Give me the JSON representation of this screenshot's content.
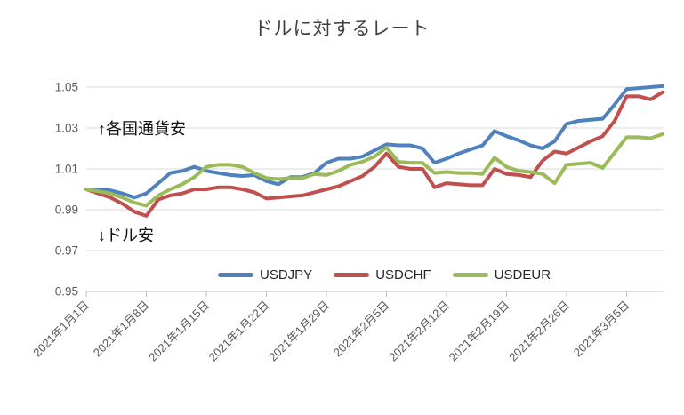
{
  "title": "ドルに対するレート",
  "annotations": {
    "weak_currencies": "↑各国通貨安",
    "weak_dollar": "↓ドル安"
  },
  "colors": {
    "grid": "#D9D9D9",
    "axis": "#BFBFBF",
    "tick_text": "#595959",
    "title_text": "#404040"
  },
  "chart_data": {
    "type": "line",
    "title": "ドルに対するレート",
    "xlabel": "",
    "ylabel": "",
    "ylim": [
      0.95,
      1.06
    ],
    "y_ticks": [
      0.95,
      0.97,
      0.99,
      1.01,
      1.03,
      1.05
    ],
    "grid": true,
    "legend_position": "bottom",
    "x_label_interval": 5,
    "x_tick_labels": [
      "2021年1月1日",
      "2021年1月8日",
      "2021年1月15日",
      "2021年1月22日",
      "2021年1月29日",
      "2021年2月5日",
      "2021年2月12日",
      "2021年2月19日",
      "2021年2月26日",
      "2021年3月5日"
    ],
    "x": [
      "2021年1月1日",
      "2021年1月4日",
      "2021年1月5日",
      "2021年1月6日",
      "2021年1月7日",
      "2021年1月8日",
      "2021年1月11日",
      "2021年1月12日",
      "2021年1月13日",
      "2021年1月14日",
      "2021年1月15日",
      "2021年1月18日",
      "2021年1月19日",
      "2021年1月20日",
      "2021年1月21日",
      "2021年1月22日",
      "2021年1月25日",
      "2021年1月26日",
      "2021年1月27日",
      "2021年1月28日",
      "2021年1月29日",
      "2021年2月1日",
      "2021年2月2日",
      "2021年2月3日",
      "2021年2月4日",
      "2021年2月5日",
      "2021年2月8日",
      "2021年2月9日",
      "2021年2月10日",
      "2021年2月11日",
      "2021年2月12日",
      "2021年2月15日",
      "2021年2月16日",
      "2021年2月17日",
      "2021年2月18日",
      "2021年2月19日",
      "2021年2月22日",
      "2021年2月23日",
      "2021年2月24日",
      "2021年2月25日",
      "2021年2月26日",
      "2021年3月1日",
      "2021年3月2日",
      "2021年3月3日",
      "2021年3月4日",
      "2021年3月5日",
      "2021年3月8日",
      "2021年3月9日",
      "2021年3月10日"
    ],
    "series": [
      {
        "name": "USDJPY",
        "color": "#4F81BD",
        "values": [
          1.0,
          1.0,
          0.9995,
          0.998,
          0.996,
          0.998,
          1.003,
          1.008,
          1.009,
          1.011,
          1.009,
          1.008,
          1.007,
          1.0065,
          1.007,
          1.004,
          1.0025,
          1.006,
          1.006,
          1.008,
          1.013,
          1.015,
          1.015,
          1.016,
          1.019,
          1.022,
          1.0215,
          1.0215,
          1.02,
          1.013,
          1.015,
          1.0175,
          1.0195,
          1.0215,
          1.0285,
          1.026,
          1.024,
          1.0215,
          1.02,
          1.0235,
          1.032,
          1.0335,
          1.034,
          1.0345,
          1.0415,
          1.049,
          1.0495,
          1.05,
          1.0505
        ]
      },
      {
        "name": "USDCHF",
        "color": "#C0504D",
        "values": [
          1.0,
          0.998,
          0.996,
          0.993,
          0.989,
          0.987,
          0.995,
          0.997,
          0.998,
          1.0,
          1.0,
          1.001,
          1.001,
          1.0,
          0.9985,
          0.9955,
          0.996,
          0.9965,
          0.997,
          0.9985,
          1.0,
          1.0015,
          1.004,
          1.0065,
          1.011,
          1.0175,
          1.011,
          1.01,
          1.01,
          1.001,
          1.003,
          1.0025,
          1.002,
          1.002,
          1.01,
          1.0075,
          1.007,
          1.006,
          1.014,
          1.0185,
          1.0175,
          1.0205,
          1.0235,
          1.026,
          1.0335,
          1.0455,
          1.0455,
          1.044,
          1.0475
        ]
      },
      {
        "name": "USDEUR",
        "color": "#9BBB59",
        "values": [
          1.0,
          0.999,
          0.998,
          0.996,
          0.9935,
          0.992,
          0.997,
          1.0,
          1.0025,
          1.006,
          1.011,
          1.012,
          1.012,
          1.011,
          1.008,
          1.0055,
          1.005,
          1.0055,
          1.0055,
          1.0075,
          1.007,
          1.009,
          1.012,
          1.0135,
          1.016,
          1.0205,
          1.0135,
          1.013,
          1.013,
          1.008,
          1.0085,
          1.008,
          1.008,
          1.0075,
          1.0155,
          1.011,
          1.009,
          1.0085,
          1.0075,
          1.003,
          1.012,
          1.0125,
          1.013,
          1.0105,
          1.018,
          1.0255,
          1.0255,
          1.025,
          1.027
        ]
      }
    ]
  }
}
